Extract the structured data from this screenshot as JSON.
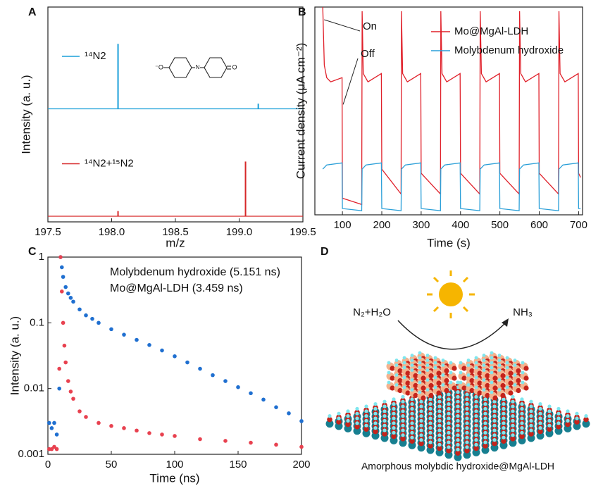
{
  "chart_data": [
    {
      "type": "stick",
      "panel_label": "A",
      "xlabel": "m/z",
      "ylabel": "Intensity (a. u.)",
      "xlim": [
        197.5,
        199.5
      ],
      "xticks": [
        197.5,
        {
          "value": 198,
          "label": "198.0"
        },
        198.5,
        {
          "value": 199,
          "label": "199.0"
        },
        199.5
      ],
      "ylim": [
        0,
        1
      ],
      "inset_labels": [
        "⁻O",
        "N",
        "O"
      ],
      "series": [
        {
          "name": "¹⁴N2",
          "color": "#1a9fd9",
          "x": [
            198.05,
            199.15
          ],
          "values": [
            0.63,
            0.05
          ]
        },
        {
          "name": "¹⁴N2+¹⁵N2",
          "color": "#d62728",
          "x": [
            198.05,
            199.05
          ],
          "values": [
            0.05,
            0.53
          ]
        }
      ]
    },
    {
      "type": "line",
      "panel_label": "B",
      "xlabel": "Time (s)",
      "ylabel": "Current density (μA cm⁻²)",
      "xlim": [
        30,
        710
      ],
      "xticks": [
        100,
        200,
        300,
        400,
        500,
        600,
        700
      ],
      "ylim": [
        0,
        100
      ],
      "annotations": [
        "On",
        "Off"
      ],
      "series": [
        {
          "name": "Mo@MgAl-LDH",
          "color": "#e0202a",
          "x": [
            50,
            54,
            60,
            70,
            99,
            100,
            149,
            150,
            153,
            165,
            199,
            200,
            249,
            250,
            253,
            265,
            299,
            300,
            349,
            350,
            353,
            365,
            399,
            400,
            449,
            450,
            453,
            465,
            499,
            500,
            549,
            550,
            553,
            565,
            599,
            600,
            649,
            650,
            653,
            665,
            699,
            700,
            705
          ],
          "values": [
            100,
            72,
            66,
            64,
            66,
            8,
            5,
            98,
            68,
            64,
            68,
            22,
            10,
            98,
            68,
            64,
            68,
            20,
            10,
            98,
            68,
            64,
            68,
            20,
            10,
            98,
            68,
            64,
            68,
            20,
            10,
            98,
            68,
            64,
            68,
            20,
            10,
            98,
            68,
            64,
            68,
            20,
            18
          ]
        },
        {
          "name": "Molybdenum hydroxide",
          "color": "#2a9fd8",
          "x": [
            50,
            60,
            99,
            100,
            149,
            150,
            160,
            199,
            200,
            249,
            250,
            260,
            299,
            300,
            349,
            350,
            360,
            399,
            400,
            449,
            450,
            460,
            499,
            500,
            549,
            550,
            560,
            599,
            600,
            649,
            650,
            660,
            699,
            700,
            705
          ],
          "values": [
            22,
            24,
            25,
            3,
            2,
            22,
            24,
            25,
            3,
            2,
            22,
            24,
            25,
            3,
            2,
            22,
            24,
            25,
            3,
            2,
            22,
            24,
            25,
            3,
            2,
            22,
            24,
            25,
            3,
            2,
            22,
            24,
            25,
            3,
            3
          ]
        }
      ]
    },
    {
      "type": "scatter",
      "panel_label": "C",
      "xlabel": "Time (ns)",
      "ylabel": "Intensity (a. u.)",
      "xlim": [
        0,
        200
      ],
      "xticks": [
        0,
        50,
        100,
        150,
        200
      ],
      "yscale": "log",
      "ylim": [
        0.001,
        1
      ],
      "yticks": [
        0.001,
        0.01,
        0.1,
        1
      ],
      "series": [
        {
          "name": "Molybdenum hydroxide (5.151 ns)",
          "color": "#1f6fd0",
          "x": [
            1,
            3,
            5,
            7,
            9,
            10,
            11,
            12,
            14,
            16,
            18,
            20,
            25,
            30,
            35,
            40,
            50,
            60,
            70,
            80,
            90,
            100,
            110,
            120,
            130,
            140,
            150,
            160,
            170,
            180,
            190,
            200
          ],
          "values": [
            0.003,
            0.0025,
            0.003,
            0.002,
            0.01,
            1,
            0.7,
            0.5,
            0.35,
            0.28,
            0.24,
            0.21,
            0.16,
            0.13,
            0.115,
            0.1,
            0.08,
            0.066,
            0.055,
            0.046,
            0.038,
            0.031,
            0.025,
            0.02,
            0.016,
            0.013,
            0.0105,
            0.0085,
            0.0068,
            0.0052,
            0.0042,
            0.0032
          ]
        },
        {
          "name": "Mo@MgAl-LDH (3.459 ns)",
          "color": "#e8414f",
          "x": [
            1,
            3,
            5,
            7,
            9,
            10,
            11,
            12,
            13,
            14,
            16,
            18,
            20,
            25,
            30,
            40,
            50,
            60,
            70,
            80,
            90,
            100,
            120,
            140,
            160,
            180,
            200
          ],
          "values": [
            0.0012,
            0.0012,
            0.0013,
            0.0012,
            0.02,
            1,
            0.3,
            0.1,
            0.045,
            0.025,
            0.013,
            0.009,
            0.007,
            0.0045,
            0.0037,
            0.003,
            0.0027,
            0.0025,
            0.0023,
            0.0021,
            0.002,
            0.0019,
            0.0017,
            0.0016,
            0.0015,
            0.0014,
            0.0013
          ]
        }
      ]
    }
  ],
  "diagram": {
    "panel_label": "D",
    "reactants": "N₂+H₂O",
    "product": "NH₃",
    "caption": "Amorphous molybdic hydroxide@MgAl-LDH"
  }
}
